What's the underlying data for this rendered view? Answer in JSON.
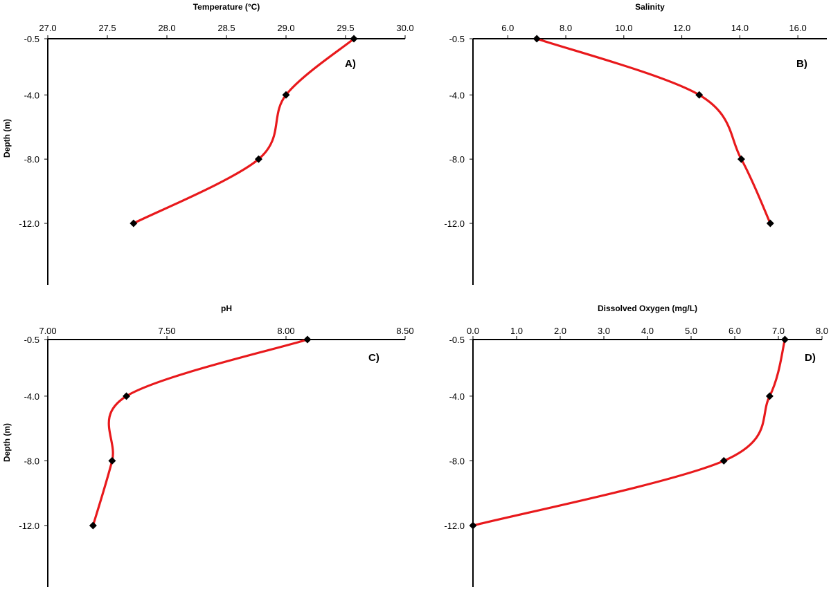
{
  "colors": {
    "line": "#e8191c",
    "marker": "#000000",
    "axis": "#000000"
  },
  "chart_data": [
    {
      "panel": "A)",
      "type": "line",
      "title": "Temperature (°C)",
      "xlabel": "Temperature (°C)",
      "ylabel": "Depth (m)",
      "xlim": [
        27.0,
        30.0
      ],
      "ylim": [
        -15.5,
        -0.5
      ],
      "x_axis_position": "top",
      "x_ticks": [
        "27.0",
        "27.5",
        "28.0",
        "28.5",
        "29.0",
        "29.5",
        "30.0"
      ],
      "y_ticks": [
        "-0.5",
        "-4.0",
        "-8.0",
        "-12.0"
      ],
      "grid": false,
      "legend": "none",
      "points": [
        {
          "x": 29.57,
          "y": -0.5
        },
        {
          "x": 29.0,
          "y": -4.0
        },
        {
          "x": 28.77,
          "y": -8.0
        },
        {
          "x": 27.72,
          "y": -12.0
        }
      ]
    },
    {
      "panel": "B)",
      "type": "line",
      "title": "Salinity",
      "xlabel": "Salinity",
      "ylabel": "",
      "xlim": [
        4.8,
        17.0
      ],
      "ylim": [
        -15.5,
        -0.5
      ],
      "x_axis_position": "top",
      "x_ticks": [
        "6.0",
        "8.0",
        "10.0",
        "12.0",
        "14.0",
        "16.0"
      ],
      "y_ticks": [
        "-0.5",
        "-4.0",
        "-8.0",
        "-12.0"
      ],
      "grid": false,
      "legend": "none",
      "points": [
        {
          "x": 7.0,
          "y": -0.5
        },
        {
          "x": 12.6,
          "y": -4.0
        },
        {
          "x": 14.05,
          "y": -8.0
        },
        {
          "x": 15.05,
          "y": -12.0
        }
      ]
    },
    {
      "panel": "C)",
      "type": "line",
      "title": "pH",
      "xlabel": "pH",
      "ylabel": "Depth (m)",
      "xlim": [
        7.0,
        8.5
      ],
      "ylim": [
        -15.5,
        -0.5
      ],
      "x_axis_position": "top",
      "x_ticks": [
        "7.00",
        "7.50",
        "8.00",
        "8.50"
      ],
      "y_ticks": [
        "-0.5",
        "-4.0",
        "-8.0",
        "-12.0"
      ],
      "grid": false,
      "legend": "none",
      "points": [
        {
          "x": 8.09,
          "y": -0.5
        },
        {
          "x": 7.33,
          "y": -4.0
        },
        {
          "x": 7.27,
          "y": -8.0
        },
        {
          "x": 7.19,
          "y": -12.0
        }
      ]
    },
    {
      "panel": "D)",
      "type": "line",
      "title": "Dissolved Oxygen (mg/L)",
      "xlabel": "Dissolved Oxygen (mg/L)",
      "ylabel": "",
      "xlim": [
        0.0,
        8.0
      ],
      "ylim": [
        -15.5,
        -0.5
      ],
      "x_axis_position": "top",
      "x_ticks": [
        "0.0",
        "1.0",
        "2.0",
        "3.0",
        "4.0",
        "5.0",
        "6.0",
        "7.0",
        "8.0"
      ],
      "y_ticks": [
        "-0.5",
        "-4.0",
        "-8.0",
        "-12.0"
      ],
      "grid": false,
      "legend": "none",
      "points": [
        {
          "x": 7.15,
          "y": -0.5
        },
        {
          "x": 6.8,
          "y": -4.0
        },
        {
          "x": 5.75,
          "y": -8.0
        },
        {
          "x": 0.0,
          "y": -12.0
        }
      ]
    }
  ]
}
